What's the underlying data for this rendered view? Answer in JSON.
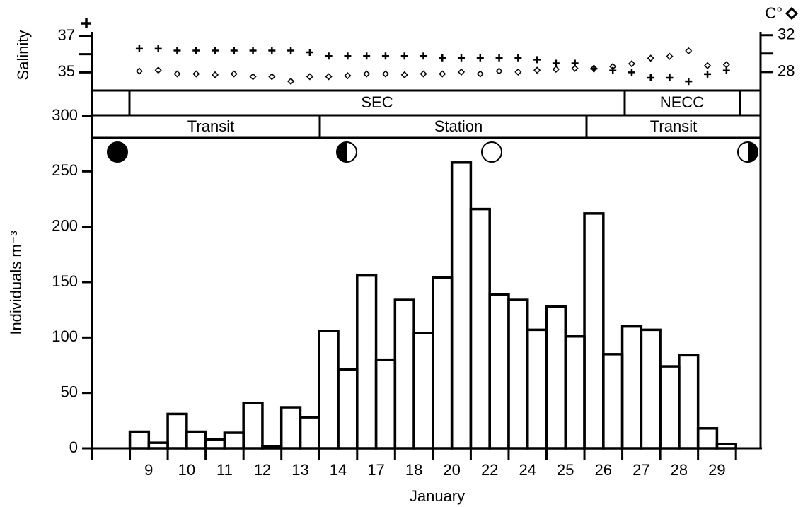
{
  "chart_data": [
    {
      "type": "histogram",
      "xlabel": "January",
      "ylabel": "Individuals m⁻³",
      "color": "#000000",
      "bins": [
        2,
        3,
        4,
        5,
        6,
        7,
        8,
        9,
        10,
        11,
        12,
        13,
        14,
        15,
        16,
        17,
        18,
        19,
        20,
        21,
        22,
        23,
        24,
        25,
        26,
        27,
        28,
        29,
        30,
        31,
        32,
        33,
        34
      ],
      "values": [
        15,
        5,
        31,
        15,
        8,
        14,
        41,
        2,
        37,
        28,
        106,
        71,
        156,
        80,
        134,
        104,
        154,
        258,
        216,
        139,
        134,
        107,
        128,
        101,
        212,
        85,
        110,
        107,
        74,
        84,
        18,
        4
      ],
      "xlim": [
        0,
        35.3
      ],
      "xticks": [
        {
          "value": 3,
          "label": "9"
        },
        {
          "value": 5,
          "label": "10"
        },
        {
          "value": 7,
          "label": "11"
        },
        {
          "value": 9,
          "label": "12"
        },
        {
          "value": 11,
          "label": "13"
        },
        {
          "value": 13,
          "label": "14"
        },
        {
          "value": 15,
          "label": "17"
        },
        {
          "value": 17,
          "label": "18"
        },
        {
          "value": 19,
          "label": "20"
        },
        {
          "value": 21,
          "label": "22"
        },
        {
          "value": 23,
          "label": "24"
        },
        {
          "value": 25,
          "label": "25"
        },
        {
          "value": 27,
          "label": "26"
        },
        {
          "value": 29,
          "label": "27"
        },
        {
          "value": 31,
          "label": "28"
        },
        {
          "value": 33,
          "label": "29"
        }
      ],
      "xtick_marks": [
        0,
        2,
        4,
        6,
        8,
        10,
        12,
        14,
        16,
        18,
        20,
        22,
        24,
        26,
        28,
        30,
        32,
        34
      ],
      "ylim": [
        0,
        300
      ],
      "yticks": [
        0,
        50,
        100,
        150,
        200,
        250,
        300
      ],
      "annotations": [
        "SEC",
        "NECC",
        "Transit",
        "Station",
        "Transit"
      ]
    },
    {
      "type": "scatter",
      "ylabel": "Salinity",
      "y2label": "C°",
      "x": [
        2.5,
        3.5,
        4.5,
        5.5,
        6.5,
        7.5,
        8.5,
        9.5,
        10.5,
        11.5,
        12.5,
        13.5,
        14.5,
        15.5,
        16.5,
        17.5,
        18.5,
        19.5,
        20.5,
        21.5,
        22.5,
        23.5,
        24.5,
        25.5,
        26.5,
        27.5,
        28.5,
        29.5,
        30.5,
        31.5,
        32.5,
        33.5
      ],
      "xlim": [
        0,
        35.3
      ],
      "series": [
        {
          "marker": "+",
          "color": "#000000",
          "values": [
            36.3,
            36.3,
            36.2,
            36.2,
            36.2,
            36.2,
            36.2,
            36.2,
            36.2,
            36.1,
            35.9,
            35.9,
            35.9,
            35.9,
            35.9,
            35.9,
            35.8,
            35.8,
            35.8,
            35.8,
            35.8,
            35.7,
            35.5,
            35.5,
            35.2,
            35.1,
            35.0,
            34.7,
            34.7,
            34.5,
            34.9,
            35.1
          ]
        },
        {
          "marker": "diamond",
          "axis": "y2",
          "color": "#000000",
          "values": [
            28.1,
            28.2,
            27.8,
            27.8,
            27.7,
            27.8,
            27.5,
            27.5,
            27.0,
            27.5,
            27.5,
            27.6,
            27.8,
            27.8,
            27.7,
            27.8,
            27.8,
            28.0,
            27.8,
            28.1,
            28.0,
            28.2,
            28.3,
            28.4,
            28.4,
            28.6,
            28.9,
            29.5,
            29.7,
            30.3,
            28.7,
            28.8
          ]
        }
      ],
      "ylim": [
        34,
        37.2
      ],
      "yticks": [
        35,
        37
      ],
      "ytick_marks": [
        35,
        36,
        37
      ],
      "y2lim": [
        26,
        32.3
      ],
      "y2ticks": [
        28,
        32
      ],
      "y2tick_marks": [
        28,
        30,
        32
      ]
    }
  ]
}
